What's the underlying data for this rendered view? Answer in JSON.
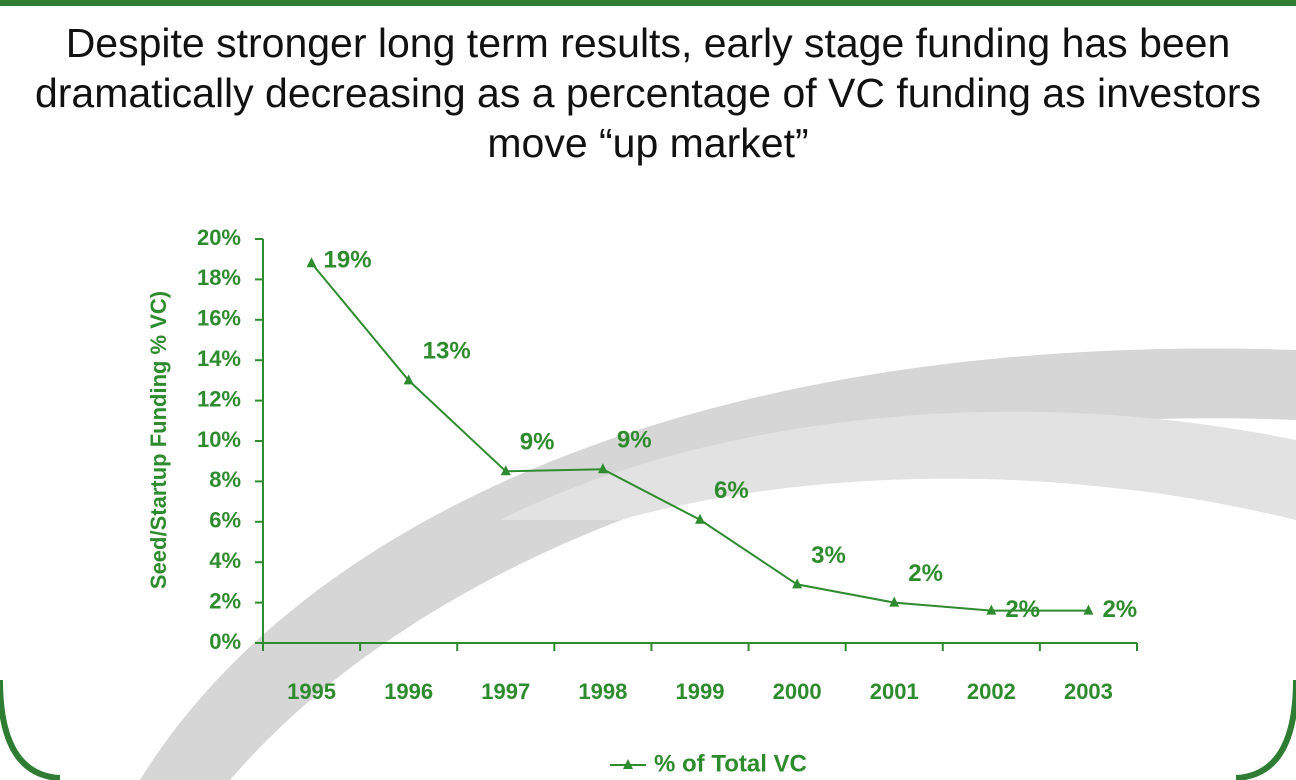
{
  "chart_data": {
    "type": "line",
    "title": "Despite stronger long term results, early stage funding has been dramatically decreasing as a percentage of VC funding as investors move “up market”",
    "y_label": "Seed/Startup Funding %  VC)",
    "categories": [
      "1995",
      "1996",
      "1997",
      "1998",
      "1999",
      "2000",
      "2001",
      "2002",
      "2003"
    ],
    "series": [
      {
        "name": "% of Total VC",
        "color": "#2e8b2e",
        "values": [
          18.8,
          13,
          8.5,
          8.6,
          6.1,
          2.9,
          2.0,
          1.6,
          1.6
        ],
        "value_labels": [
          "19%",
          "13%",
          "9%",
          "9%",
          "6%",
          "3%",
          "2%",
          "2%",
          "2%"
        ]
      }
    ],
    "ylim": [
      0,
      20
    ],
    "yticks": [
      {
        "value": 0,
        "label": "0%"
      },
      {
        "value": 2,
        "label": "2%"
      },
      {
        "value": 4,
        "label": "4%"
      },
      {
        "value": 6,
        "label": "6%"
      },
      {
        "value": 8,
        "label": "8%"
      },
      {
        "value": 10,
        "label": "10%"
      },
      {
        "value": 12,
        "label": "12%"
      },
      {
        "value": 14,
        "label": "14%"
      },
      {
        "value": 16,
        "label": "16%"
      },
      {
        "value": 18,
        "label": "18%"
      },
      {
        "value": 20,
        "label": "20%"
      }
    ],
    "legend": "bottom"
  }
}
